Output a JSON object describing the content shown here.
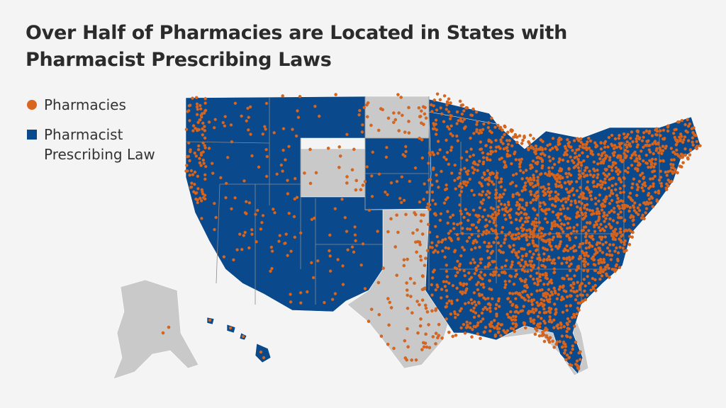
{
  "title": "Over Half of Pharmacies are Located in States with Pharmacist Prescribing Laws",
  "legend": [
    {
      "label": "Pharmacies",
      "shape": "circle",
      "color": "#d9661f"
    },
    {
      "label": "Pharmacist Prescribing Law",
      "shape": "square",
      "color": "#0a4a8c"
    }
  ],
  "colors": {
    "law_state": "#0a4a8c",
    "no_law_state": "#c9c9c9",
    "pharmacy_dot": "#d9661f",
    "state_border": "#8a8a8a",
    "background": "#f4f4f4"
  },
  "map": {
    "region": "United States",
    "states_with_law": [
      "WA",
      "OR",
      "CA",
      "ID",
      "MT",
      "NV",
      "UT",
      "AZ",
      "CO",
      "NM",
      "MN",
      "IA",
      "WI",
      "MO",
      "KY",
      "OH",
      "PA",
      "NY",
      "ME",
      "MD",
      "DE",
      "HI",
      "NE",
      "NH",
      "VT",
      "MA",
      "CT",
      "RI",
      "NJ",
      "VA",
      "WV",
      "IN",
      "MI",
      "IL",
      "TN",
      "AR",
      "NC"
    ],
    "states_without_law": [
      "AK",
      "WY",
      "ND",
      "TX",
      "OK",
      "KS",
      "LA",
      "MS",
      "AL",
      "GA",
      "SC",
      "FL",
      "SD"
    ]
  }
}
